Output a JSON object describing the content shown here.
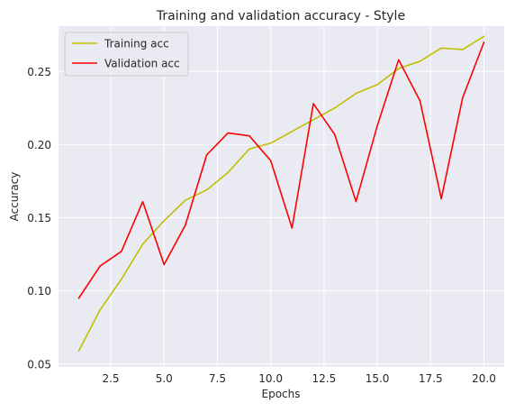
{
  "chart_data": {
    "type": "line",
    "title": "Training and validation accuracy - Style",
    "xlabel": "Epochs",
    "ylabel": "Accuracy",
    "xlim": [
      0.05,
      20.95
    ],
    "ylim": [
      0.048,
      0.281
    ],
    "xticks": [
      2.5,
      5.0,
      7.5,
      10.0,
      12.5,
      15.0,
      17.5,
      20.0
    ],
    "xtick_labels": [
      "2.5",
      "5.0",
      "7.5",
      "10.0",
      "12.5",
      "15.0",
      "17.5",
      "20.0"
    ],
    "yticks": [
      0.05,
      0.1,
      0.15,
      0.2,
      0.25
    ],
    "ytick_labels": [
      "0.05",
      "0.10",
      "0.15",
      "0.20",
      "0.25"
    ],
    "grid": true,
    "legend": "top-left",
    "x": [
      1,
      2,
      3,
      4,
      5,
      6,
      7,
      8,
      9,
      10,
      11,
      12,
      13,
      14,
      15,
      16,
      17,
      18,
      19,
      20
    ],
    "series": [
      {
        "name": "Training acc",
        "color": "#bfbf00",
        "values": [
          0.059,
          0.087,
          0.108,
          0.132,
          0.148,
          0.162,
          0.169,
          0.181,
          0.197,
          0.201,
          0.209,
          0.217,
          0.225,
          0.235,
          0.241,
          0.252,
          0.257,
          0.266,
          0.265,
          0.274
        ]
      },
      {
        "name": "Validation acc",
        "color": "#ff0000",
        "values": [
          0.095,
          0.117,
          0.127,
          0.161,
          0.118,
          0.145,
          0.193,
          0.208,
          0.206,
          0.189,
          0.143,
          0.228,
          0.207,
          0.161,
          0.213,
          0.258,
          0.23,
          0.163,
          0.232,
          0.27
        ]
      }
    ]
  }
}
